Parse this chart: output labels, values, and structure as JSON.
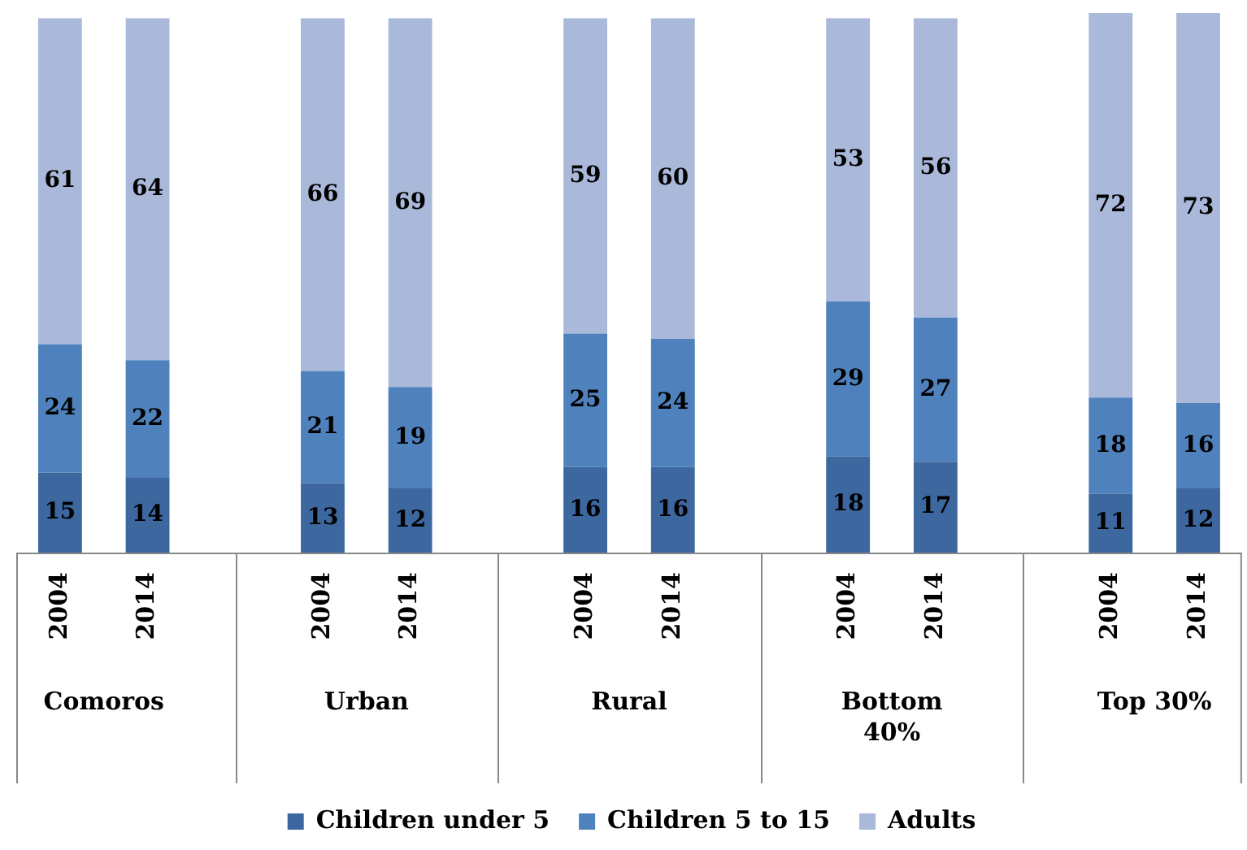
{
  "chart_data": {
    "type": "bar",
    "stacked": true,
    "data_labels": true,
    "legend": "bottom",
    "grid": false,
    "categories": [
      "2004",
      "2014",
      null,
      "2004",
      "2014",
      null,
      "2004",
      "2014",
      null,
      "2004",
      "2014",
      null,
      "2004",
      "2014"
    ],
    "annotations": [
      "Comoros",
      "Urban",
      "Rural",
      "Bottom 40%",
      "Top 30%"
    ],
    "series": [
      {
        "name": "Children under 5",
        "color": "#3c679f",
        "values": [
          15,
          14,
          null,
          13,
          12,
          null,
          16,
          16,
          null,
          18,
          17,
          null,
          11,
          12
        ]
      },
      {
        "name": "Children 5 to 15",
        "color": "#4f81bd",
        "values": [
          24,
          22,
          null,
          21,
          19,
          null,
          25,
          24,
          null,
          29,
          27,
          null,
          18,
          16
        ]
      },
      {
        "name": "Adults",
        "color": "#aab9da",
        "values": [
          61,
          64,
          null,
          66,
          69,
          null,
          59,
          60,
          null,
          53,
          56,
          null,
          72,
          73
        ]
      }
    ]
  }
}
